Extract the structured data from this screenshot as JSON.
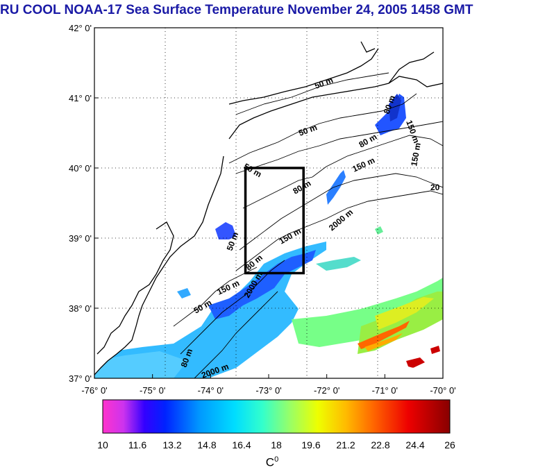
{
  "title": "RU COOL  NOAA-17 Sea Surface Temperature November 24, 2005 1458 GMT",
  "colors": {
    "title": "#1a1aa6",
    "coast": "#000000",
    "box": "#000000"
  },
  "map": {
    "lon_range": [
      -76,
      -70
    ],
    "lat_range": [
      37,
      42
    ],
    "lat_ticks": [
      "37° 0'",
      "38° 0'",
      "39° 0'",
      "40° 0'",
      "41° 0'",
      "42° 0'"
    ],
    "lon_ticks": [
      "-76° 0'",
      "-75° 0'",
      "-74° 0'",
      "-73° 0'",
      "-72° 0'",
      "-71° 0'",
      "-70° 0'"
    ],
    "contour_labels": [
      "50 m",
      "50 m",
      "50 m",
      "80 m",
      "80 m",
      "80 m",
      "150 m",
      "150 m",
      "150 m",
      "150 m",
      "2000 m",
      "2000 m",
      "2000 m",
      "50 m",
      "50 m",
      "80 m",
      "150 m",
      "80 m",
      "20"
    ],
    "study_box": {
      "lon": [
        -73.4,
        -72.4
      ],
      "lat": [
        38.5,
        40.0
      ]
    }
  },
  "colorbar": {
    "labels": [
      "10",
      "11.6",
      "13.2",
      "14.8",
      "16.4",
      "18",
      "19.6",
      "21.2",
      "22.8",
      "24.4",
      "26"
    ],
    "unit": "C",
    "unit_sup": "0"
  }
}
